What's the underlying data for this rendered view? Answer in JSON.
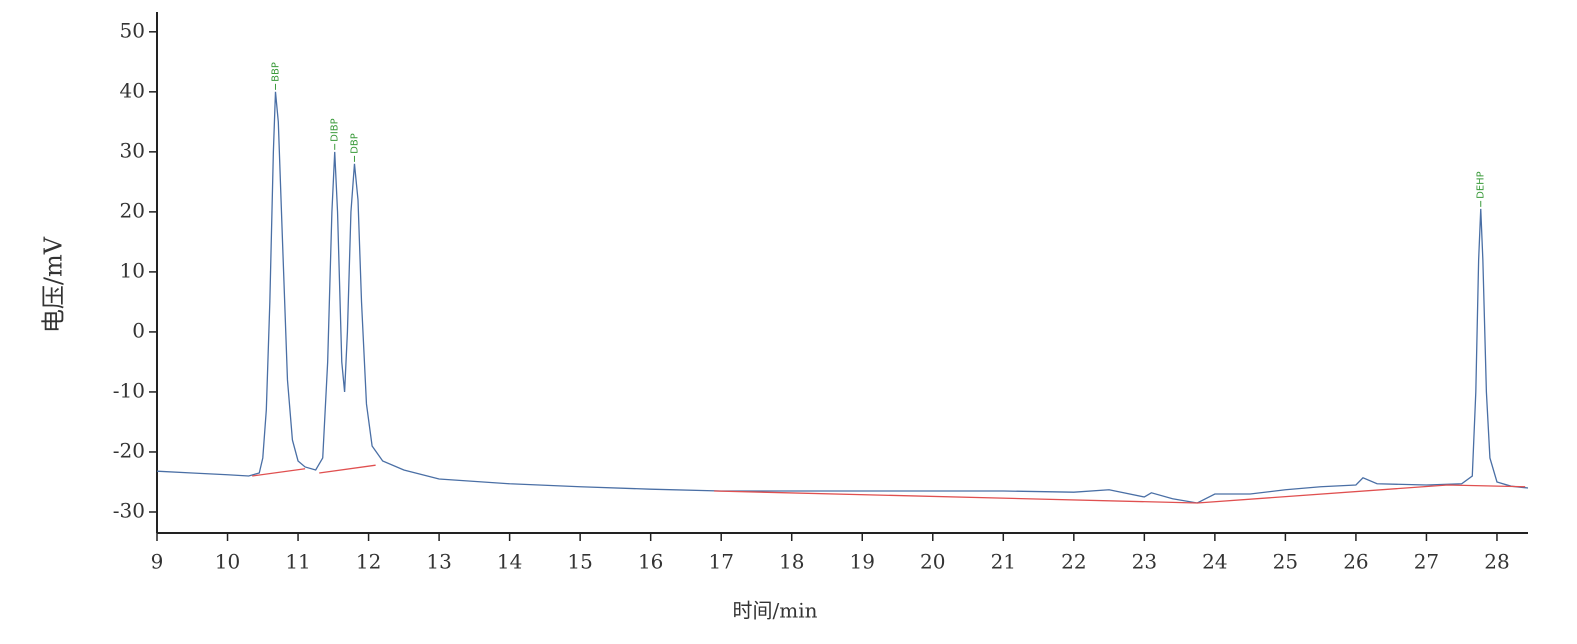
{
  "chart_data": {
    "type": "line",
    "xlabel": "时间/min",
    "ylabel": "电压/mV",
    "xlim": [
      9,
      28.44
    ],
    "ylim": [
      -33.5,
      53.3
    ],
    "xticks": [
      9,
      10,
      11,
      12,
      13,
      14,
      15,
      16,
      17,
      18,
      19,
      20,
      21,
      22,
      23,
      24,
      25,
      26,
      27,
      28
    ],
    "yticks": [
      -30,
      -20,
      -10,
      0,
      10,
      20,
      30,
      40,
      50
    ],
    "series": [
      {
        "color": "#4a6fa5",
        "x": [
          9,
          9.5,
          10,
          10.3,
          10.45,
          10.5,
          10.55,
          10.6,
          10.65,
          10.68,
          10.72,
          10.78,
          10.85,
          10.92,
          11.0,
          11.1,
          11.25,
          11.35,
          11.42,
          11.48,
          11.52,
          11.56,
          11.62,
          11.66,
          11.7,
          11.75,
          11.8,
          11.85,
          11.9,
          11.97,
          12.05,
          12.2,
          12.5,
          13,
          14,
          15,
          16,
          17,
          18,
          19,
          20,
          21,
          22,
          22.5,
          23,
          23.1,
          23.4,
          23.75,
          24,
          24.5,
          25,
          25.5,
          26,
          26.1,
          26.3,
          27,
          27.5,
          27.65,
          27.7,
          27.74,
          27.77,
          27.8,
          27.85,
          27.9,
          28,
          28.2,
          28.44
        ],
        "values": [
          -23.2,
          -23.5,
          -23.8,
          -24,
          -23.5,
          -21,
          -13,
          5,
          30,
          40,
          35,
          15,
          -8,
          -18,
          -21.5,
          -22.5,
          -23,
          -21,
          -5,
          20,
          30,
          20,
          -5,
          -10,
          0,
          20,
          28,
          22,
          5,
          -12,
          -19,
          -21.5,
          -23,
          -24.5,
          -25.3,
          -25.8,
          -26.2,
          -26.5,
          -26.5,
          -26.5,
          -26.5,
          -26.5,
          -26.7,
          -26.3,
          -27.5,
          -26.8,
          -27.8,
          -28.5,
          -27,
          -27,
          -26.3,
          -25.8,
          -25.5,
          -24.3,
          -25.3,
          -25.5,
          -25.3,
          -24,
          -10,
          12,
          20.5,
          12,
          -10,
          -21,
          -25,
          -25.7,
          -26
        ]
      },
      {
        "color": "#e05050",
        "x": [
          10.35,
          11.1,
          11.2,
          11.3,
          12.1,
          12.2,
          16.9,
          23.75,
          27.3,
          28.4
        ],
        "values": [
          -24,
          -22.8,
          null,
          -23.5,
          -22.2,
          null,
          -26.5,
          -28.5,
          -25.5,
          -25.8
        ]
      }
    ],
    "annotations": [
      {
        "text": "BBP",
        "x": 10.68,
        "y": 40
      },
      {
        "text": "DIBP",
        "x": 11.52,
        "y": 30
      },
      {
        "text": "DBP",
        "x": 11.8,
        "y": 28
      },
      {
        "text": "DEHP",
        "x": 27.77,
        "y": 20.5
      }
    ],
    "annotation_color": "#3a9a3a"
  }
}
